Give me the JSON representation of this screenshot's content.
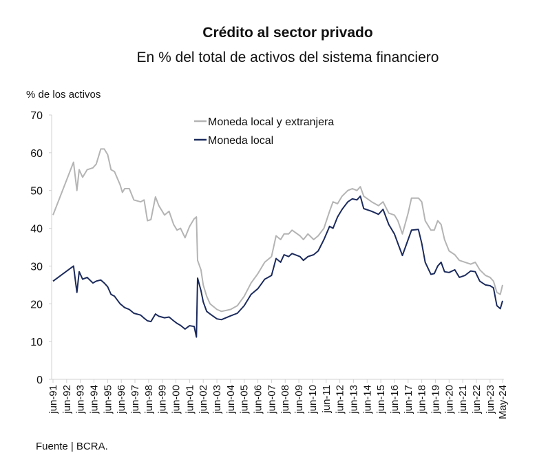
{
  "chart_data": {
    "type": "line",
    "title": "Crédito al sector privado",
    "subtitle": "En % del total de activos del sistema financiero",
    "y_label": "% de los activos",
    "source": "Fuente | BCRA.",
    "x": [
      "1991-06",
      "1992-12",
      "1993-03",
      "1993-05",
      "1993-08",
      "1993-12",
      "1994-05",
      "1994-08",
      "1994-12",
      "1995-03",
      "1995-06",
      "1995-09",
      "1995-12",
      "1996-05",
      "1996-07",
      "1996-09",
      "1997-01",
      "1997-05",
      "1997-11",
      "1998-02",
      "1998-05",
      "1998-08",
      "1998-12",
      "1999-03",
      "1999-08",
      "1999-12",
      "2000-04",
      "2000-07",
      "2000-10",
      "2001-02",
      "2001-06",
      "2001-10",
      "2001-12",
      "2002-01",
      "2002-04",
      "2002-06",
      "2002-09",
      "2002-12",
      "2003-06",
      "2003-10",
      "2004-06",
      "2004-12",
      "2005-06",
      "2005-12",
      "2006-06",
      "2006-12",
      "2007-06",
      "2007-10",
      "2008-02",
      "2008-05",
      "2008-09",
      "2008-12",
      "2009-07",
      "2009-10",
      "2010-02",
      "2010-07",
      "2010-11",
      "2011-04",
      "2011-09",
      "2011-12",
      "2012-04",
      "2012-08",
      "2013-01",
      "2013-05",
      "2013-09",
      "2013-12",
      "2014-03",
      "2014-10",
      "2015-04",
      "2015-08",
      "2016-01",
      "2016-06",
      "2016-09",
      "2017-01",
      "2017-06",
      "2017-09",
      "2018-03",
      "2018-06",
      "2018-09",
      "2019-02",
      "2019-05",
      "2019-08",
      "2019-11",
      "2020-02",
      "2020-06",
      "2020-11",
      "2021-03",
      "2021-08",
      "2022-01",
      "2022-05",
      "2022-09",
      "2023-02",
      "2023-06",
      "2023-09",
      "2023-12",
      "2024-03",
      "2024-05"
    ],
    "series": [
      {
        "name": "Moneda local y extranjera",
        "color": "#b4b4b4",
        "values": [
          43.5,
          57.5,
          50,
          55.5,
          53.5,
          55.5,
          56,
          57,
          61,
          61,
          59.5,
          55.5,
          55,
          51.5,
          49.5,
          50.5,
          50.5,
          47.5,
          47,
          47.5,
          42,
          42.3,
          48.3,
          46,
          43.5,
          44.5,
          41,
          39.5,
          40,
          37.5,
          40.5,
          42.5,
          43,
          31.5,
          29,
          25,
          22,
          20,
          18.5,
          18,
          18.5,
          19.5,
          22,
          25.5,
          28,
          31,
          32.5,
          38,
          37,
          38.5,
          38.5,
          39.5,
          38,
          37,
          38.5,
          37,
          38,
          40,
          44.5,
          47,
          46.5,
          48.5,
          50,
          50.5,
          50,
          51,
          48.5,
          47,
          46,
          47,
          44,
          43.5,
          42,
          38.5,
          44,
          48,
          48,
          47,
          42,
          39.5,
          39.5,
          42,
          41,
          37,
          34,
          33,
          31.5,
          31,
          30.5,
          31,
          29,
          27.5,
          27,
          26,
          23,
          22.5,
          25
        ]
      },
      {
        "name": "Moneda local",
        "color": "#1b2a5c",
        "values": [
          26,
          30,
          23,
          28.5,
          26.5,
          27,
          25.5,
          26,
          26.3,
          25.5,
          24.5,
          22.5,
          22,
          20,
          19.5,
          19,
          18.5,
          17.5,
          17,
          16.2,
          15.5,
          15.3,
          17.3,
          16.7,
          16.3,
          16.5,
          15.5,
          14.8,
          14.3,
          13.3,
          14.2,
          14,
          11.2,
          26.8,
          23.5,
          20.5,
          18,
          17.3,
          16,
          15.8,
          16.8,
          17.5,
          19.5,
          22.5,
          24,
          26.5,
          27.5,
          32,
          31,
          33,
          32.5,
          33.3,
          32.5,
          31.5,
          32.5,
          33,
          34,
          37,
          40.5,
          40,
          43,
          45,
          47,
          47.8,
          47.5,
          48.5,
          45.2,
          44.5,
          43.7,
          45,
          41,
          38.5,
          36,
          32.8,
          37,
          39.5,
          39.7,
          36,
          31,
          27.8,
          28,
          30,
          31,
          28.5,
          28.3,
          29,
          27,
          27.5,
          28.7,
          28.5,
          26,
          25,
          24.8,
          24.2,
          19.5,
          18.7,
          20.8
        ]
      }
    ],
    "ylim": [
      0,
      70
    ],
    "yticks": [
      0,
      10,
      20,
      30,
      40,
      50,
      60,
      70
    ],
    "xlim": [
      "1991-06",
      "2024-05"
    ],
    "xticks": [
      {
        "value": "1991-06",
        "label": "jun-91"
      },
      {
        "value": "1992-06",
        "label": "jun-92"
      },
      {
        "value": "1993-06",
        "label": "jun-93"
      },
      {
        "value": "1994-06",
        "label": "jun-94"
      },
      {
        "value": "1995-06",
        "label": "jun-95"
      },
      {
        "value": "1996-06",
        "label": "jun-96"
      },
      {
        "value": "1997-06",
        "label": "jun-97"
      },
      {
        "value": "1998-06",
        "label": "jun-98"
      },
      {
        "value": "1999-06",
        "label": "jun-99"
      },
      {
        "value": "2000-06",
        "label": "jun-00"
      },
      {
        "value": "2001-06",
        "label": "jun-01"
      },
      {
        "value": "2002-06",
        "label": "jun-02"
      },
      {
        "value": "2003-06",
        "label": "jun-03"
      },
      {
        "value": "2004-06",
        "label": "jun-04"
      },
      {
        "value": "2005-06",
        "label": "jun-05"
      },
      {
        "value": "2006-06",
        "label": "jun-06"
      },
      {
        "value": "2007-06",
        "label": "jun-07"
      },
      {
        "value": "2008-06",
        "label": "jun-08"
      },
      {
        "value": "2009-06",
        "label": "jun-09"
      },
      {
        "value": "2010-06",
        "label": "jun-10"
      },
      {
        "value": "2011-06",
        "label": "jun-11"
      },
      {
        "value": "2012-06",
        "label": "jun-12"
      },
      {
        "value": "2013-06",
        "label": "jun-13"
      },
      {
        "value": "2014-06",
        "label": "jun-14"
      },
      {
        "value": "2015-06",
        "label": "jun-15"
      },
      {
        "value": "2016-06",
        "label": "jun-16"
      },
      {
        "value": "2017-06",
        "label": "jun-17"
      },
      {
        "value": "2018-06",
        "label": "jun-18"
      },
      {
        "value": "2019-06",
        "label": "jun-19"
      },
      {
        "value": "2020-06",
        "label": "jun-20"
      },
      {
        "value": "2021-06",
        "label": "jun-21"
      },
      {
        "value": "2022-06",
        "label": "jun-22"
      },
      {
        "value": "2023-06",
        "label": "jun-23"
      },
      {
        "value": "2024-05",
        "label": "May-24"
      }
    ],
    "grid": false,
    "legend": "top-left"
  }
}
